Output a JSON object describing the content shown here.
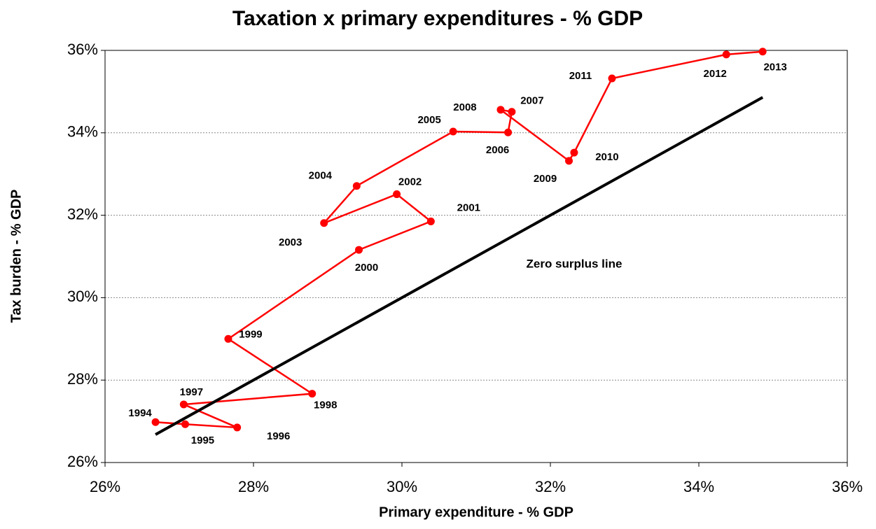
{
  "chart_data": {
    "type": "scatter",
    "title": "Taxation x primary expenditures - % GDP",
    "x_label": "Primary expenditure - % GDP",
    "y_label": "Tax burden - % GDP",
    "xlim": [
      26,
      36
    ],
    "xticks": [
      {
        "value": 26,
        "label": "26%"
      },
      {
        "value": 28,
        "label": "28%"
      },
      {
        "value": 30,
        "label": "30%"
      },
      {
        "value": 32,
        "label": "32%"
      },
      {
        "value": 34,
        "label": "34%"
      },
      {
        "value": 36,
        "label": "36%"
      }
    ],
    "ylim": [
      26,
      36
    ],
    "yticks": [
      {
        "value": 26,
        "label": "26%"
      },
      {
        "value": 28,
        "label": "28%"
      },
      {
        "value": 30,
        "label": "30%"
      },
      {
        "value": 32,
        "label": "32%"
      },
      {
        "value": 34,
        "label": "34%"
      },
      {
        "value": 36,
        "label": "36%"
      }
    ],
    "grid": true,
    "series": [
      {
        "name": "Tax burden",
        "color": "#ff0000",
        "connected": true,
        "labels": [
          "1994",
          "1995",
          "1996",
          "1997",
          "1998",
          "1999",
          "2000",
          "2001",
          "2002",
          "2003",
          "2004",
          "2005",
          "2006",
          "2007",
          "2008",
          "2009",
          "2010",
          "2011",
          "2012",
          "2013"
        ],
        "x": [
          26.68,
          27.08,
          27.78,
          27.06,
          28.79,
          27.66,
          29.42,
          30.39,
          29.93,
          28.95,
          29.39,
          30.69,
          31.43,
          31.48,
          31.33,
          32.25,
          32.32,
          32.83,
          34.37,
          34.86
        ],
        "values": [
          26.98,
          26.93,
          26.85,
          27.41,
          27.67,
          29.0,
          31.16,
          31.85,
          32.51,
          31.81,
          32.71,
          34.03,
          34.01,
          34.51,
          34.56,
          33.32,
          33.52,
          35.32,
          35.9,
          35.97
        ]
      },
      {
        "name": "Zero surplus line",
        "color": "#000000",
        "x": [
          26.68,
          34.86
        ],
        "values": [
          26.68,
          34.86
        ]
      }
    ]
  }
}
